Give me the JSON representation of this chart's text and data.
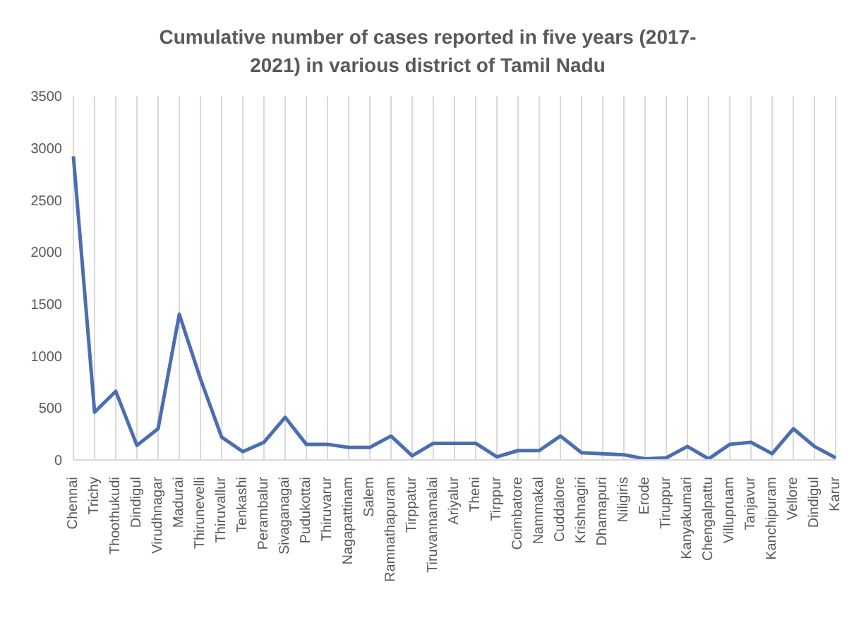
{
  "chart_data": {
    "type": "line",
    "title": "Cumulative  number  of cases reported in five years (2017-2021)  in various district of Tamil  Nadu",
    "categories": [
      "Chennai",
      "Trichy",
      "Thoothukudi",
      "Dindigul",
      "Virudhnagar",
      "Madurai",
      "Thirunevelli",
      "Thiruvallur",
      "Tenkashi",
      "Perambalur",
      "Sivaganagai",
      "Pudukottai",
      "Thiruvarur",
      "Nagapattinam",
      "Salem",
      "Ramnathapuram",
      "Tirppatur",
      "Tiruvannamalai",
      "Ariyalur",
      "Theni",
      "Tirppur",
      "Coimbatore",
      "Nammakal",
      "Cuddalore",
      "Krishnagiri",
      "Dhamapuri",
      "Niligiris",
      "Erode",
      "Tiruppur",
      "Kanyakumari",
      "Chengalpattu",
      "Villupruam",
      "Tanjavur",
      "Kanchipuram",
      "Vellore",
      "Dindigul",
      "Karur"
    ],
    "series": [
      {
        "color": "#4a6eb0",
        "values": [
          2920,
          460,
          660,
          140,
          300,
          1400,
          780,
          220,
          80,
          170,
          410,
          150,
          150,
          120,
          120,
          230,
          40,
          160,
          160,
          160,
          30,
          90,
          90,
          230,
          70,
          60,
          50,
          10,
          20,
          130,
          10,
          150,
          170,
          60,
          300,
          130,
          20
        ]
      }
    ],
    "ylim": [
      0,
      3500
    ],
    "yticks": [
      0,
      500,
      1000,
      1500,
      2000,
      2500,
      3000,
      3500
    ],
    "grid": "x",
    "marker": "none",
    "line_style": "solid"
  }
}
